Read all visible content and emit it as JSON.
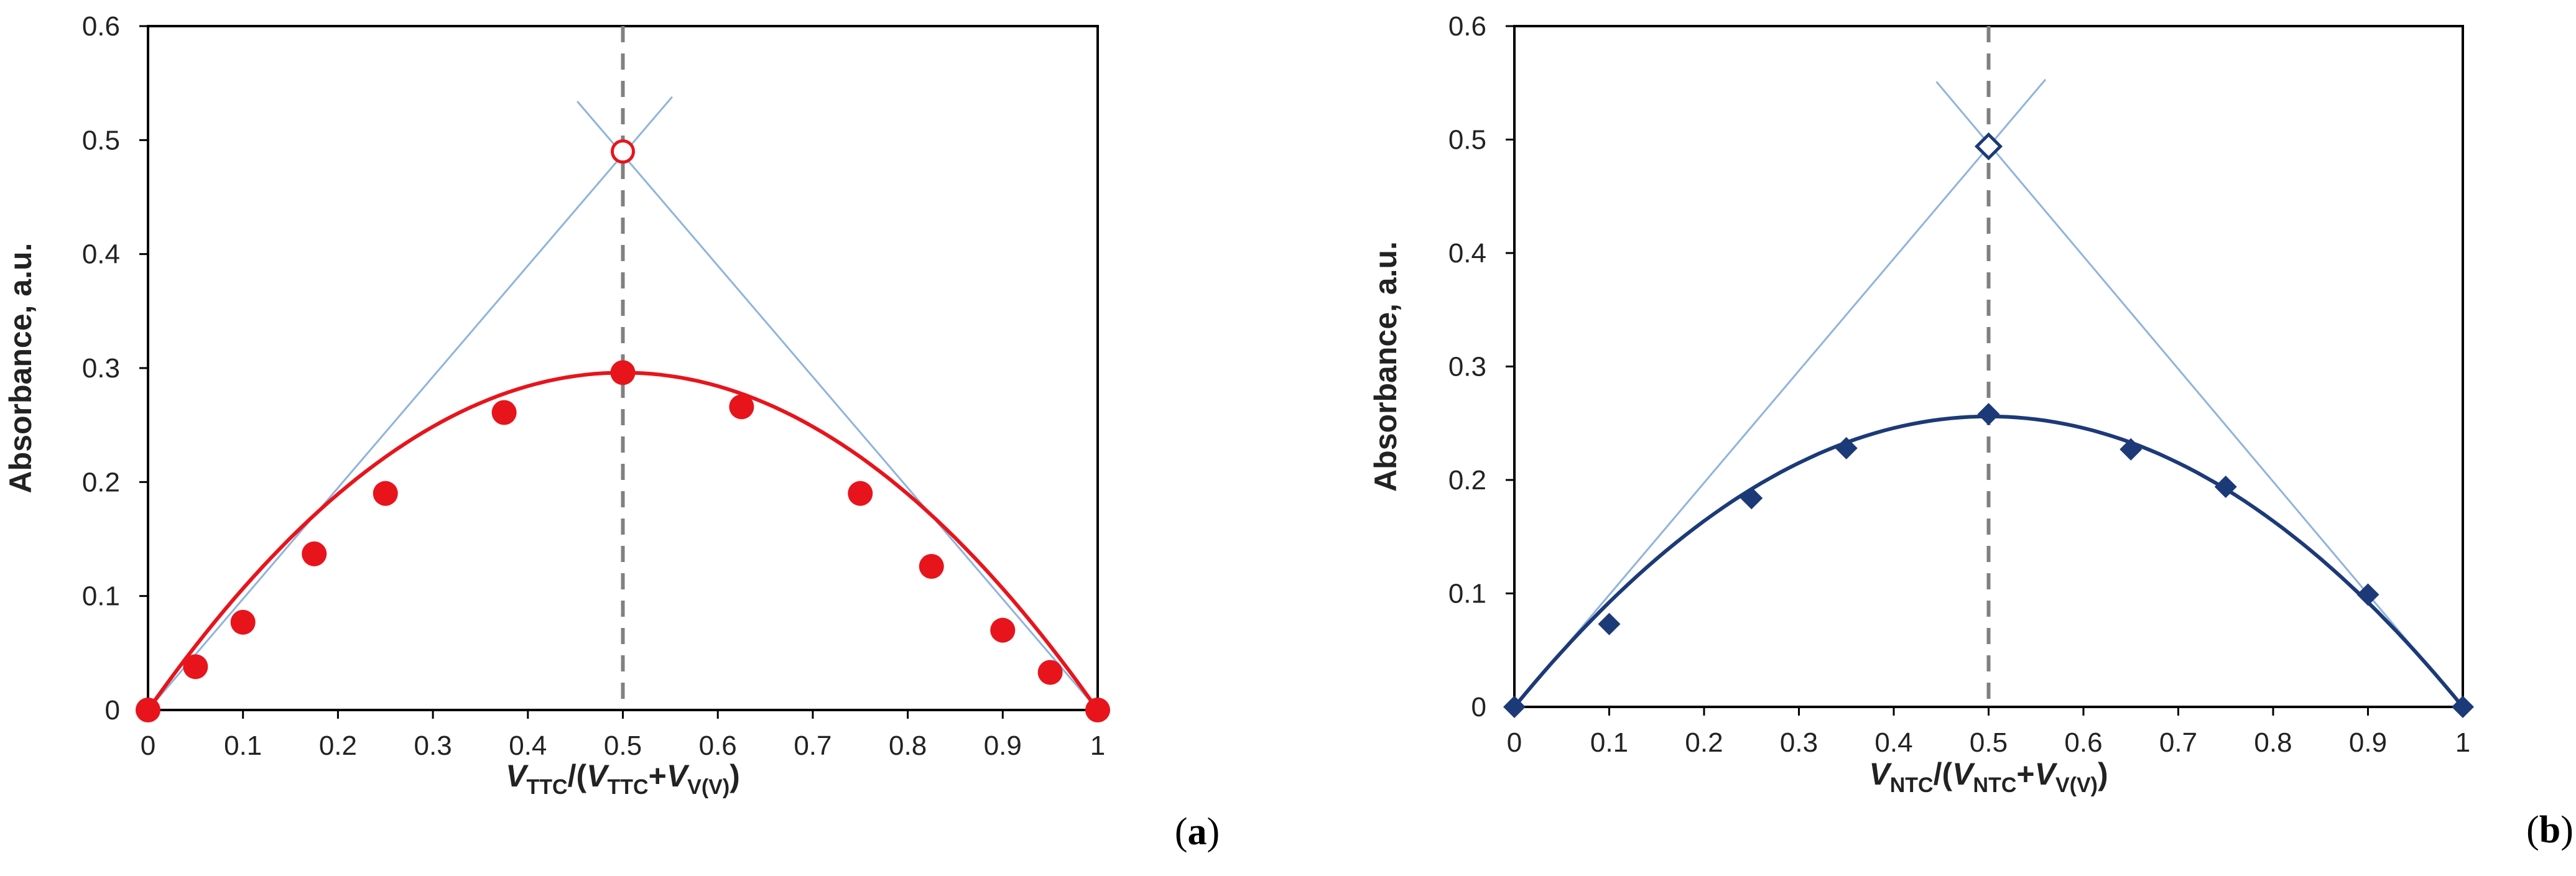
{
  "chart_data": [
    {
      "type": "scatter",
      "panel_label": "(a)",
      "panel_letter": "a",
      "ylabel": "Absorbance, a.u.",
      "xlabel_parts": [
        "V",
        "TTC",
        "/(",
        "V",
        "TTC",
        "+",
        "V",
        "V(V)",
        ")"
      ],
      "xlim": [
        0,
        1
      ],
      "ylim": [
        0,
        0.6
      ],
      "xticks": [
        0,
        0.1,
        0.2,
        0.3,
        0.4,
        0.5,
        0.6,
        0.7,
        0.8,
        0.9,
        1
      ],
      "xtick_labels": [
        "0",
        "0.1",
        "0.2",
        "0.3",
        "0.4",
        "0.5",
        "0.6",
        "0.7",
        "0.8",
        "0.9",
        "1"
      ],
      "yticks": [
        0,
        0.1,
        0.2,
        0.3,
        0.4,
        0.5,
        0.6
      ],
      "ytick_labels": [
        "0",
        "0.1",
        "0.2",
        "0.3",
        "0.4",
        "0.5",
        "0.6"
      ],
      "grid": false,
      "marker": "circle",
      "color": "#e8141c",
      "tangent_color": "#8fb4dc",
      "series": [
        {
          "x": [
            0,
            0.05,
            0.1,
            0.175,
            0.25,
            0.375,
            0.5,
            0.625,
            0.75,
            0.825,
            0.9,
            0.95,
            1
          ],
          "y": [
            0,
            0.038,
            0.077,
            0.137,
            0.19,
            0.261,
            0.296,
            0.266,
            0.19,
            0.126,
            0.07,
            0.033,
            0
          ]
        }
      ],
      "fit": {
        "type": "quadratic",
        "x": [
          0,
          0.5,
          1
        ],
        "y": [
          0,
          0.296,
          0
        ]
      },
      "tangents": [
        {
          "x": [
            0,
            0.552
          ],
          "y": [
            0,
            0.538
          ]
        },
        {
          "x": [
            0.452,
            1
          ],
          "y": [
            0.534,
            0
          ]
        }
      ],
      "vertical_line": {
        "x": 0.5,
        "style": "dashed",
        "color": "#808080"
      },
      "intersection": {
        "x": 0.5,
        "y": 0.49,
        "marker": "open-circle"
      }
    },
    {
      "type": "scatter",
      "panel_label": "(b)",
      "panel_letter": "b",
      "ylabel": "Absorbance, a.u.",
      "xlabel_parts": [
        "V",
        "NTC",
        "/(",
        "V",
        "NTC",
        "+",
        "V",
        "V(V)",
        ")"
      ],
      "xlim": [
        0,
        1
      ],
      "ylim": [
        0,
        0.6
      ],
      "xticks": [
        0,
        0.1,
        0.2,
        0.3,
        0.4,
        0.5,
        0.6,
        0.7,
        0.8,
        0.9,
        1
      ],
      "xtick_labels": [
        "0",
        "0.1",
        "0.2",
        "0.3",
        "0.4",
        "0.5",
        "0.6",
        "0.7",
        "0.8",
        "0.9",
        "1"
      ],
      "yticks": [
        0,
        0.1,
        0.2,
        0.3,
        0.4,
        0.5,
        0.6
      ],
      "ytick_labels": [
        "0",
        "0.1",
        "0.2",
        "0.3",
        "0.4",
        "0.5",
        "0.6"
      ],
      "grid": false,
      "marker": "diamond",
      "color": "#1c3a78",
      "tangent_color": "#8fb4dc",
      "series": [
        {
          "x": [
            0,
            0.1,
            0.25,
            0.35,
            0.5,
            0.65,
            0.75,
            0.9,
            1
          ],
          "y": [
            0,
            0.073,
            0.184,
            0.228,
            0.258,
            0.227,
            0.194,
            0.099,
            0
          ]
        }
      ],
      "fit": {
        "type": "quadratic",
        "x": [
          0,
          0.5,
          1
        ],
        "y": [
          0,
          0.256,
          0
        ]
      },
      "tangents": [
        {
          "x": [
            0,
            0.56
          ],
          "y": [
            0,
            0.553
          ]
        },
        {
          "x": [
            0.445,
            1
          ],
          "y": [
            0.551,
            0
          ]
        }
      ],
      "vertical_line": {
        "x": 0.5,
        "style": "dashed",
        "color": "#808080"
      },
      "intersection": {
        "x": 0.5,
        "y": 0.494,
        "marker": "open-diamond"
      }
    }
  ]
}
